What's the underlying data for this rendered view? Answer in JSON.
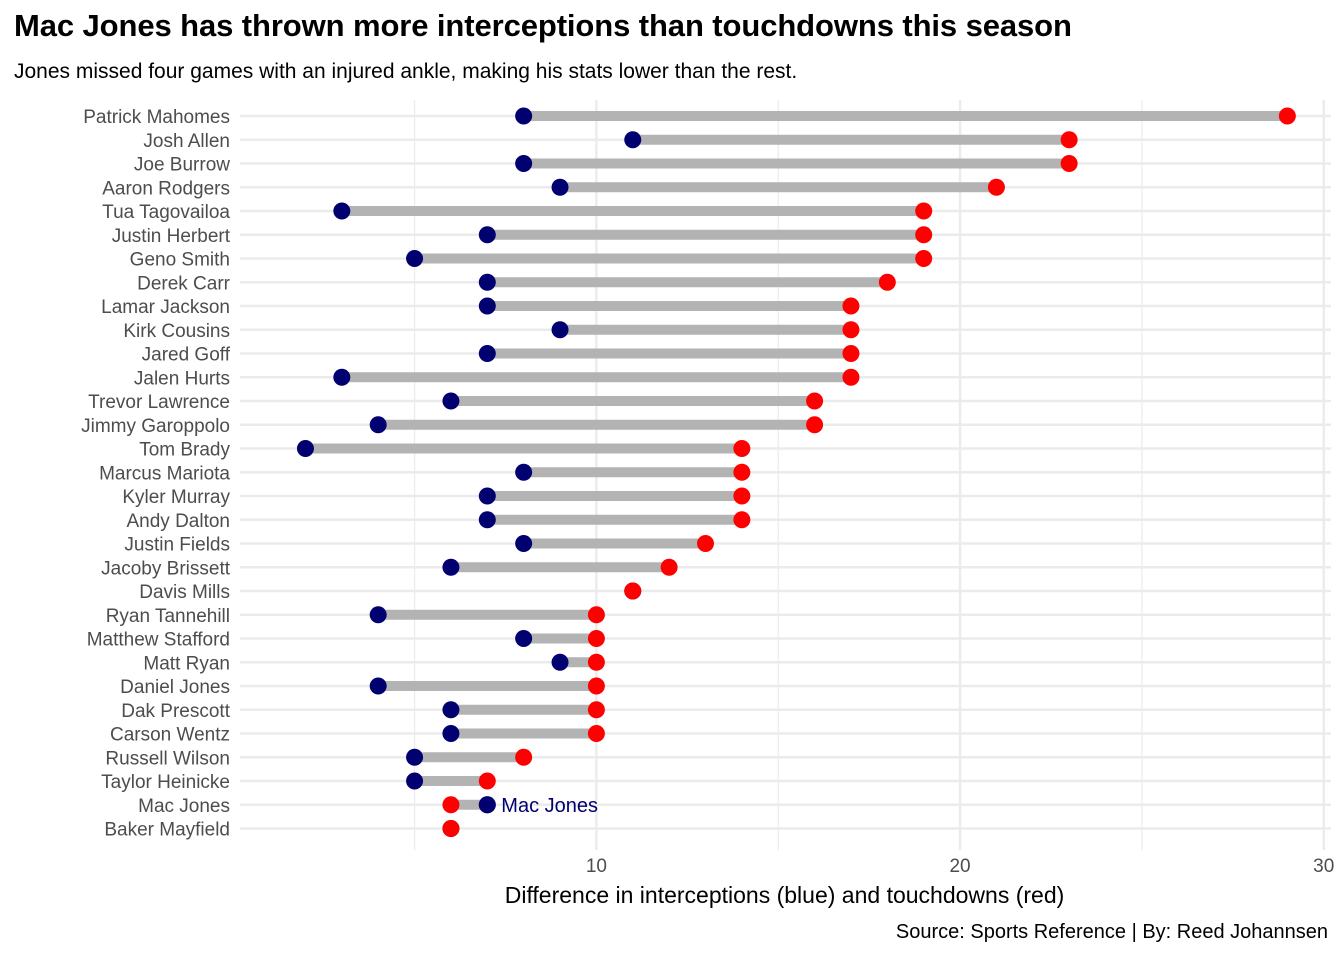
{
  "title": "Mac Jones has thrown more interceptions than touchdowns this season",
  "subtitle": "Jones missed four games with an injured ankle, making his stats lower than the rest.",
  "caption": "Source: Sports Reference | By: Reed Johannsen",
  "chart_data": {
    "type": "dumbbell",
    "title": "Mac Jones has thrown more interceptions than touchdowns this season",
    "subtitle": "Jones missed four games with an injured ankle, making his stats lower than the rest.",
    "xlabel": "Difference in interceptions (blue) and touchdowns (red)",
    "ylabel": "",
    "xlim": [
      0.2,
      30.2
    ],
    "xticks": [
      10,
      20,
      30
    ],
    "grid": true,
    "colors": {
      "interceptions": "#000070",
      "touchdowns": "#ff0000",
      "segment": "#b3b3b3",
      "grid": "#ebebeb"
    },
    "series": [
      {
        "name": "interceptions (blue)",
        "key": "int"
      },
      {
        "name": "touchdowns (red)",
        "key": "td"
      }
    ],
    "rows": [
      {
        "player": "Patrick Mahomes",
        "int": 8,
        "td": 29
      },
      {
        "player": "Josh Allen",
        "int": 11,
        "td": 23
      },
      {
        "player": "Joe Burrow",
        "int": 8,
        "td": 23
      },
      {
        "player": "Aaron Rodgers",
        "int": 9,
        "td": 21
      },
      {
        "player": "Tua Tagovailoa",
        "int": 3,
        "td": 19
      },
      {
        "player": "Justin Herbert",
        "int": 7,
        "td": 19
      },
      {
        "player": "Geno Smith",
        "int": 5,
        "td": 19
      },
      {
        "player": "Derek Carr",
        "int": 7,
        "td": 18
      },
      {
        "player": "Lamar Jackson",
        "int": 7,
        "td": 17
      },
      {
        "player": "Kirk Cousins",
        "int": 9,
        "td": 17
      },
      {
        "player": "Jared Goff",
        "int": 7,
        "td": 17
      },
      {
        "player": "Jalen Hurts",
        "int": 3,
        "td": 17
      },
      {
        "player": "Trevor Lawrence",
        "int": 6,
        "td": 16
      },
      {
        "player": "Jimmy Garoppolo",
        "int": 4,
        "td": 16
      },
      {
        "player": "Tom Brady",
        "int": 2,
        "td": 14
      },
      {
        "player": "Marcus Mariota",
        "int": 8,
        "td": 14
      },
      {
        "player": "Kyler Murray",
        "int": 7,
        "td": 14
      },
      {
        "player": "Andy Dalton",
        "int": 7,
        "td": 14
      },
      {
        "player": "Justin Fields",
        "int": 8,
        "td": 13
      },
      {
        "player": "Jacoby Brissett",
        "int": 6,
        "td": 12
      },
      {
        "player": "Davis Mills",
        "int": 11,
        "td": 11
      },
      {
        "player": "Ryan Tannehill",
        "int": 4,
        "td": 10
      },
      {
        "player": "Matthew Stafford",
        "int": 8,
        "td": 10
      },
      {
        "player": "Matt Ryan",
        "int": 9,
        "td": 10
      },
      {
        "player": "Daniel Jones",
        "int": 4,
        "td": 10
      },
      {
        "player": "Dak Prescott",
        "int": 6,
        "td": 10
      },
      {
        "player": "Carson Wentz",
        "int": 6,
        "td": 10
      },
      {
        "player": "Russell Wilson",
        "int": 5,
        "td": 8
      },
      {
        "player": "Taylor Heinicke",
        "int": 5,
        "td": 7
      },
      {
        "player": "Mac Jones",
        "int": 7,
        "td": 6
      },
      {
        "player": "Baker Mayfield",
        "int": 6,
        "td": 6
      }
    ],
    "annotations": [
      {
        "text": "Mac Jones",
        "player": "Mac Jones",
        "color": "#000070"
      }
    ]
  }
}
